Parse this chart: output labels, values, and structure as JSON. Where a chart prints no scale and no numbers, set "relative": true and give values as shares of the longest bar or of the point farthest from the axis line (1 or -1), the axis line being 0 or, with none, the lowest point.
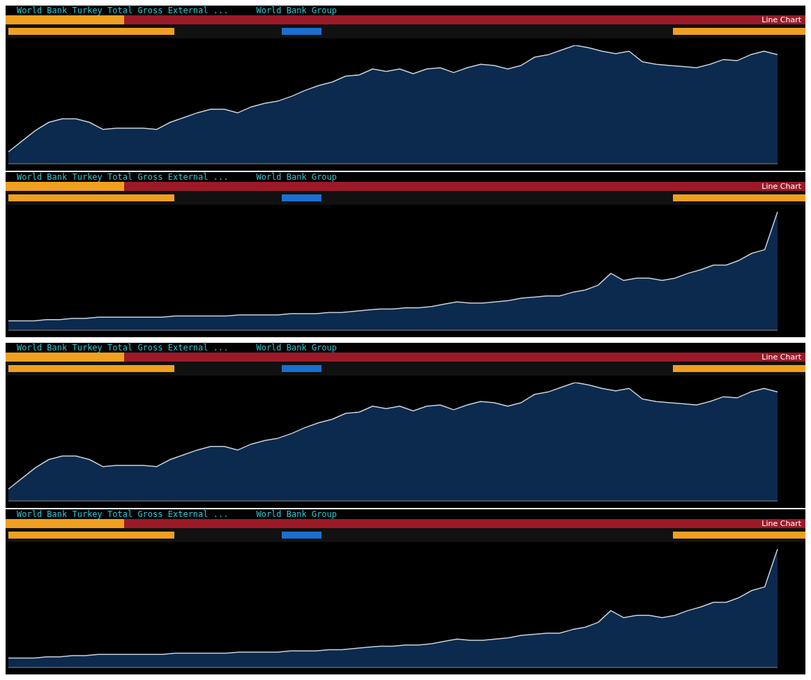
{
  "chart_data": [
    {
      "type": "area",
      "title": "World Bank Turkey Total Gross External ...",
      "subtitle": "World Bank Group",
      "annotations": [
        "Line Chart"
      ],
      "relative": true,
      "categories": [
        null,
        null,
        null,
        null,
        null,
        null,
        null,
        null,
        null,
        null,
        null,
        null,
        null,
        null,
        null,
        null,
        null,
        null,
        null,
        null,
        null,
        null,
        null,
        null,
        null,
        null,
        null,
        null,
        null,
        null,
        null,
        null,
        null,
        null,
        null,
        null,
        null,
        null,
        null,
        null,
        null,
        null,
        null,
        null,
        null,
        null,
        null,
        null,
        null,
        null,
        null,
        null,
        null,
        null,
        null,
        null,
        null,
        null
      ],
      "series": [
        {
          "color": "#0c2a4e",
          "values": [
            0.1,
            0.19,
            0.28,
            0.35,
            0.38,
            0.38,
            0.35,
            0.29,
            0.3,
            0.3,
            0.3,
            0.29,
            0.35,
            0.39,
            0.43,
            0.46,
            0.46,
            0.43,
            0.48,
            0.51,
            0.53,
            0.57,
            0.62,
            0.66,
            0.69,
            0.74,
            0.75,
            0.8,
            0.78,
            0.8,
            0.76,
            0.8,
            0.81,
            0.77,
            0.81,
            0.84,
            0.83,
            0.8,
            0.83,
            0.9,
            0.92,
            0.96,
            1,
            0.98,
            0.95,
            0.93,
            0.95,
            0.86,
            0.84,
            0.83,
            0.82,
            0.81,
            0.84,
            0.88,
            0.87,
            0.92,
            0.95,
            0.92
          ]
        }
      ]
    },
    {
      "type": "area",
      "title": "World Bank Turkey Total Gross External ...",
      "subtitle": "World Bank Group",
      "annotations": [
        "Line Chart"
      ],
      "relative": true,
      "categories": [
        null,
        null,
        null,
        null,
        null,
        null,
        null,
        null,
        null,
        null,
        null,
        null,
        null,
        null,
        null,
        null,
        null,
        null,
        null,
        null,
        null,
        null,
        null,
        null,
        null,
        null,
        null,
        null,
        null,
        null,
        null,
        null,
        null,
        null,
        null,
        null,
        null,
        null,
        null,
        null,
        null,
        null,
        null,
        null,
        null,
        null,
        null,
        null,
        null,
        null,
        null,
        null,
        null,
        null,
        null,
        null,
        null,
        null,
        null,
        null,
        null
      ],
      "series": [
        {
          "color": "#0c2a4e",
          "values": [
            0.08,
            0.08,
            0.08,
            0.09,
            0.09,
            0.1,
            0.1,
            0.11,
            0.11,
            0.11,
            0.11,
            0.11,
            0.11,
            0.12,
            0.12,
            0.12,
            0.12,
            0.12,
            0.13,
            0.13,
            0.13,
            0.13,
            0.14,
            0.14,
            0.14,
            0.15,
            0.15,
            0.16,
            0.17,
            0.18,
            0.18,
            0.19,
            0.19,
            0.2,
            0.22,
            0.24,
            0.23,
            0.23,
            0.24,
            0.25,
            0.27,
            0.28,
            0.29,
            0.29,
            0.32,
            0.34,
            0.38,
            0.48,
            0.42,
            0.44,
            0.44,
            0.42,
            0.44,
            0.48,
            0.51,
            0.55,
            0.55,
            0.59,
            0.65,
            0.68,
            1
          ]
        }
      ]
    },
    {
      "type": "area",
      "title": "World Bank Turkey Total Gross External ...",
      "subtitle": "World Bank Group",
      "annotations": [
        "Line Chart"
      ],
      "relative": true,
      "categories": [
        null,
        null,
        null,
        null,
        null,
        null,
        null,
        null,
        null,
        null,
        null,
        null,
        null,
        null,
        null,
        null,
        null,
        null,
        null,
        null,
        null,
        null,
        null,
        null,
        null,
        null,
        null,
        null,
        null,
        null,
        null,
        null,
        null,
        null,
        null,
        null,
        null,
        null,
        null,
        null,
        null,
        null,
        null,
        null,
        null,
        null,
        null,
        null,
        null,
        null,
        null,
        null,
        null,
        null,
        null,
        null,
        null,
        null
      ],
      "series": [
        {
          "color": "#0c2a4e",
          "values": [
            0.1,
            0.19,
            0.28,
            0.35,
            0.38,
            0.38,
            0.35,
            0.29,
            0.3,
            0.3,
            0.3,
            0.29,
            0.35,
            0.39,
            0.43,
            0.46,
            0.46,
            0.43,
            0.48,
            0.51,
            0.53,
            0.57,
            0.62,
            0.66,
            0.69,
            0.74,
            0.75,
            0.8,
            0.78,
            0.8,
            0.76,
            0.8,
            0.81,
            0.77,
            0.81,
            0.84,
            0.83,
            0.8,
            0.83,
            0.9,
            0.92,
            0.96,
            1,
            0.98,
            0.95,
            0.93,
            0.95,
            0.86,
            0.84,
            0.83,
            0.82,
            0.81,
            0.84,
            0.88,
            0.87,
            0.92,
            0.95,
            0.92
          ]
        }
      ]
    },
    {
      "type": "area",
      "title": "World Bank Turkey Total Gross External ...",
      "subtitle": "World Bank Group",
      "annotations": [
        "Line Chart"
      ],
      "relative": true,
      "categories": [
        null,
        null,
        null,
        null,
        null,
        null,
        null,
        null,
        null,
        null,
        null,
        null,
        null,
        null,
        null,
        null,
        null,
        null,
        null,
        null,
        null,
        null,
        null,
        null,
        null,
        null,
        null,
        null,
        null,
        null,
        null,
        null,
        null,
        null,
        null,
        null,
        null,
        null,
        null,
        null,
        null,
        null,
        null,
        null,
        null,
        null,
        null,
        null,
        null,
        null,
        null,
        null,
        null,
        null,
        null,
        null,
        null,
        null,
        null,
        null,
        null
      ],
      "series": [
        {
          "color": "#0c2a4e",
          "values": [
            0.08,
            0.08,
            0.08,
            0.09,
            0.09,
            0.1,
            0.1,
            0.11,
            0.11,
            0.11,
            0.11,
            0.11,
            0.11,
            0.12,
            0.12,
            0.12,
            0.12,
            0.12,
            0.13,
            0.13,
            0.13,
            0.13,
            0.14,
            0.14,
            0.14,
            0.15,
            0.15,
            0.16,
            0.17,
            0.18,
            0.18,
            0.19,
            0.19,
            0.2,
            0.22,
            0.24,
            0.23,
            0.23,
            0.24,
            0.25,
            0.27,
            0.28,
            0.29,
            0.29,
            0.32,
            0.34,
            0.38,
            0.48,
            0.42,
            0.44,
            0.44,
            0.42,
            0.44,
            0.48,
            0.51,
            0.55,
            0.55,
            0.59,
            0.65,
            0.68,
            1
          ]
        }
      ]
    }
  ]
}
